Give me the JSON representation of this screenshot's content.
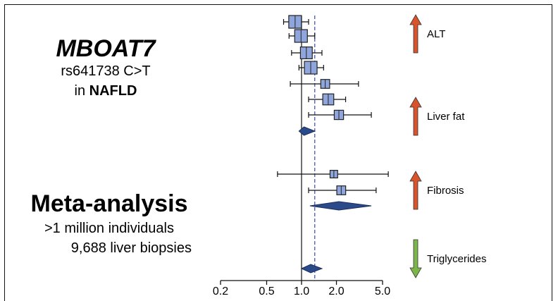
{
  "panel": {
    "gene": "MBOAT7",
    "variant": "rs641738 C>T",
    "cohort_prefix": "in ",
    "cohort_bold": "NAFLD",
    "meta_title": "Meta-analysis",
    "individuals": ">1 million individuals",
    "biopsies": "9,688 liver biopsies"
  },
  "colors": {
    "box": "#8fa6dc",
    "diamond": "#2a4a8a",
    "up_arrow": "#d9532b",
    "down_arrow": "#7ab648"
  },
  "chart_data": {
    "type": "forest",
    "scale": "log",
    "xlim": [
      0.2,
      5.0
    ],
    "ticks": [
      "0.2",
      "0.5",
      "1.0",
      "2.0",
      "5.0"
    ],
    "tick_values": [
      0.2,
      0.5,
      1.0,
      2.0,
      5.0
    ],
    "null_line": 1.0,
    "pooled_line": 1.3,
    "rows": [
      {
        "kind": "box",
        "est": 0.88,
        "lo": 0.7,
        "hi": 1.15,
        "size": 1.0
      },
      {
        "kind": "box",
        "est": 0.99,
        "lo": 0.78,
        "hi": 1.3,
        "size": 1.0
      },
      {
        "kind": "box",
        "est": 1.1,
        "lo": 0.82,
        "hi": 1.5,
        "size": 0.9
      },
      {
        "kind": "box",
        "est": 1.2,
        "lo": 0.95,
        "hi": 1.55,
        "size": 1.0
      },
      {
        "kind": "box",
        "est": 1.6,
        "lo": 0.8,
        "hi": 3.1,
        "size": 0.55
      },
      {
        "kind": "box",
        "est": 1.7,
        "lo": 1.15,
        "hi": 2.4,
        "size": 0.8
      },
      {
        "kind": "box",
        "est": 2.1,
        "lo": 1.15,
        "hi": 4.0,
        "size": 0.6
      },
      {
        "kind": "diamond",
        "est": 1.05,
        "lo": 0.95,
        "hi": 1.3
      },
      {
        "kind": "box",
        "est": 1.9,
        "lo": 0.62,
        "hi": 5.6,
        "size": 0.4
      },
      {
        "kind": "box",
        "est": 2.2,
        "lo": 1.15,
        "hi": 4.4,
        "size": 0.55
      },
      {
        "kind": "diamond",
        "est": 2.1,
        "lo": 1.18,
        "hi": 4.0
      },
      {
        "kind": "diamond",
        "est": 1.2,
        "lo": 1.0,
        "hi": 1.5
      }
    ],
    "traits": [
      {
        "label": "ALT",
        "direction": "up"
      },
      {
        "label": "Liver fat",
        "direction": "up"
      },
      {
        "label": "Fibrosis",
        "direction": "up"
      },
      {
        "label": "Triglycerides",
        "direction": "down"
      }
    ]
  }
}
